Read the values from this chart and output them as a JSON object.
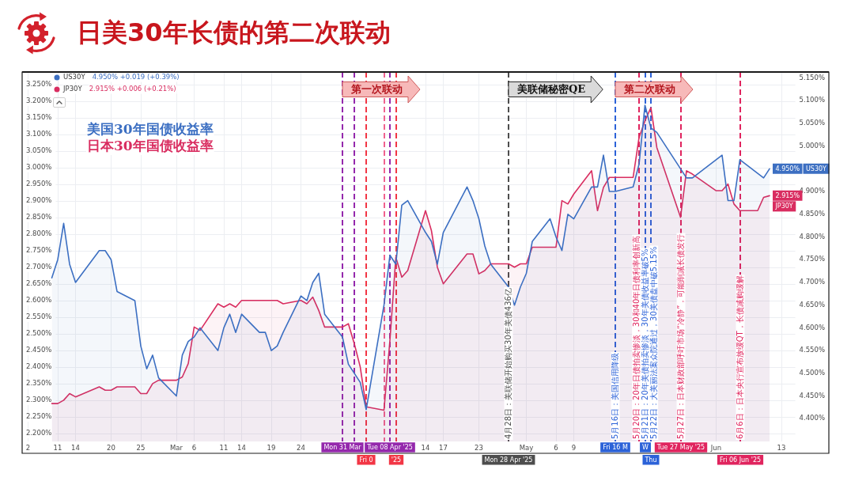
{
  "chart_data": {
    "type": "area",
    "title": "日美30年长债的第二次联动",
    "x": [
      "2025-02-10",
      "2025-02-11",
      "2025-02-12",
      "2025-02-13",
      "2025-02-14",
      "2025-02-18",
      "2025-02-19",
      "2025-02-20",
      "2025-02-21",
      "2025-02-24",
      "2025-02-25",
      "2025-02-26",
      "2025-02-27",
      "2025-02-28",
      "2025-03-03",
      "2025-03-04",
      "2025-03-05",
      "2025-03-06",
      "2025-03-07",
      "2025-03-10",
      "2025-03-11",
      "2025-03-12",
      "2025-03-13",
      "2025-03-14",
      "2025-03-17",
      "2025-03-18",
      "2025-03-19",
      "2025-03-20",
      "2025-03-21",
      "2025-03-24",
      "2025-03-25",
      "2025-03-26",
      "2025-03-27",
      "2025-03-28",
      "2025-03-31",
      "2025-04-01",
      "2025-04-02",
      "2025-04-03",
      "2025-04-04",
      "2025-04-07",
      "2025-04-08",
      "2025-04-09",
      "2025-04-10",
      "2025-04-11",
      "2025-04-14",
      "2025-04-15",
      "2025-04-16",
      "2025-04-17",
      "2025-04-21",
      "2025-04-22",
      "2025-04-23",
      "2025-04-24",
      "2025-04-25",
      "2025-04-28",
      "2025-04-29",
      "2025-04-30",
      "2025-05-01",
      "2025-05-02",
      "2025-05-05",
      "2025-05-06",
      "2025-05-07",
      "2025-05-08",
      "2025-05-09",
      "2025-05-12",
      "2025-05-13",
      "2025-05-14",
      "2025-05-15",
      "2025-05-16",
      "2025-05-19",
      "2025-05-20",
      "2025-05-21",
      "2025-05-22",
      "2025-05-23",
      "2025-05-27",
      "2025-05-28",
      "2025-05-29",
      "2025-06-02",
      "2025-06-03",
      "2025-06-04",
      "2025-06-05",
      "2025-06-06",
      "2025-06-09",
      "2025-06-10",
      "2025-06-11"
    ],
    "series": [
      {
        "name": "US30Y",
        "color": "#3c6fc2",
        "axis": "y2",
        "values": [
          4.71,
          4.75,
          4.83,
          4.74,
          4.7,
          4.77,
          4.77,
          4.75,
          4.68,
          4.66,
          4.56,
          4.51,
          4.54,
          4.49,
          4.45,
          4.54,
          4.57,
          4.58,
          4.6,
          4.55,
          4.6,
          4.63,
          4.59,
          4.63,
          4.59,
          4.59,
          4.55,
          4.56,
          4.59,
          4.67,
          4.66,
          4.7,
          4.72,
          4.63,
          4.58,
          4.52,
          4.5,
          4.48,
          4.42,
          4.65,
          4.76,
          4.74,
          4.87,
          4.88,
          4.81,
          4.79,
          4.74,
          4.81,
          4.91,
          4.88,
          4.84,
          4.78,
          4.74,
          4.69,
          4.65,
          4.69,
          4.72,
          4.79,
          4.84,
          4.8,
          4.77,
          4.85,
          4.84,
          4.91,
          4.91,
          4.98,
          4.9,
          4.9,
          4.91,
          4.96,
          5.09,
          5.04,
          5.03,
          4.95,
          4.93,
          4.93,
          4.97,
          4.98,
          4.88,
          4.88,
          4.97,
          4.94,
          4.93,
          4.95
        ],
        "value_labels": [
          null,
          null,
          null,
          null,
          null,
          null,
          null,
          null,
          null,
          null,
          null,
          null,
          null,
          null,
          null,
          null,
          null,
          null,
          null,
          null,
          null,
          null,
          null,
          null,
          null,
          null,
          null,
          null,
          null,
          null,
          null,
          null,
          null,
          null,
          null,
          null,
          null,
          null,
          null,
          null,
          null,
          null,
          null,
          null,
          null,
          null,
          null,
          null,
          null,
          null,
          null,
          null,
          null,
          null,
          null,
          null,
          null,
          null,
          null,
          null,
          null,
          null,
          null,
          null,
          null,
          null,
          null,
          null,
          null,
          null,
          null,
          null,
          null,
          null,
          null,
          null,
          null,
          null,
          null,
          null,
          null,
          null,
          null,
          "4.950%"
        ]
      },
      {
        "name": "JP30Y",
        "color": "#d92d60",
        "values": [
          2.29,
          2.29,
          2.3,
          2.32,
          2.31,
          2.34,
          2.33,
          2.33,
          2.34,
          2.34,
          2.32,
          2.32,
          2.35,
          2.36,
          2.36,
          2.37,
          2.41,
          2.52,
          2.51,
          2.59,
          2.58,
          2.59,
          2.58,
          2.6,
          2.6,
          2.6,
          2.6,
          2.6,
          2.59,
          2.6,
          2.59,
          2.61,
          2.57,
          2.52,
          2.52,
          2.53,
          2.47,
          2.4,
          2.28,
          2.27,
          2.48,
          2.73,
          2.67,
          2.69,
          2.87,
          2.81,
          2.7,
          2.65,
          2.74,
          2.74,
          2.68,
          2.69,
          2.71,
          2.71,
          2.7,
          2.71,
          2.71,
          2.76,
          2.76,
          2.76,
          2.9,
          2.89,
          2.92,
          2.99,
          2.87,
          2.94,
          2.97,
          2.97,
          2.97,
          3.09,
          3.14,
          3.18,
          3.06,
          2.85,
          2.99,
          2.98,
          2.93,
          2.93,
          2.95,
          2.89,
          2.87,
          2.87,
          2.91,
          2.915
        ],
        "value_labels": [
          null,
          null,
          null,
          null,
          null,
          null,
          null,
          null,
          null,
          null,
          null,
          null,
          null,
          null,
          null,
          null,
          null,
          null,
          null,
          null,
          null,
          null,
          null,
          null,
          null,
          null,
          null,
          null,
          null,
          null,
          null,
          null,
          null,
          null,
          null,
          null,
          null,
          null,
          null,
          null,
          null,
          null,
          null,
          null,
          null,
          null,
          null,
          null,
          null,
          null,
          null,
          null,
          null,
          null,
          null,
          null,
          null,
          null,
          null,
          null,
          null,
          null,
          null,
          null,
          null,
          null,
          null,
          null,
          null,
          null,
          null,
          null,
          null,
          null,
          null,
          null,
          null,
          null,
          null,
          null,
          null,
          null,
          null,
          "2.915%"
        ]
      }
    ],
    "xlim": [
      "2025-02-05",
      "2025-06-21"
    ],
    "xticks": [
      {
        "value": "2025-02-06",
        "label": "2"
      },
      {
        "value": "2025-02-11",
        "label": "11"
      },
      {
        "value": "2025-02-14",
        "label": "14"
      },
      {
        "value": "2025-02-20",
        "label": "20"
      },
      {
        "value": "2025-02-25",
        "label": "25"
      },
      {
        "value": "2025-03-03",
        "label": "Mar"
      },
      {
        "value": "2025-03-06",
        "label": "6"
      },
      {
        "value": "2025-03-11",
        "label": "11"
      },
      {
        "value": "2025-03-14",
        "label": "14"
      },
      {
        "value": "2025-03-19",
        "label": "19"
      },
      {
        "value": "2025-03-24",
        "label": "24"
      },
      {
        "value": "2025-04-14",
        "label": "14"
      },
      {
        "value": "2025-04-17",
        "label": "17"
      },
      {
        "value": "2025-04-23",
        "label": "23"
      },
      {
        "value": "2025-05-01",
        "label": "May"
      },
      {
        "value": "2025-05-06",
        "label": "6"
      },
      {
        "value": "2025-05-09",
        "label": "9"
      },
      {
        "value": "2025-06-02",
        "label": "Jun"
      },
      {
        "value": "2025-06-13",
        "label": "13"
      }
    ],
    "ylim": [
      2.176,
      3.287
    ],
    "yticks": [
      {
        "value": 2.2,
        "label": "2.200%"
      },
      {
        "value": 2.25,
        "label": "2.250%"
      },
      {
        "value": 2.3,
        "label": "2.300%"
      },
      {
        "value": 2.35,
        "label": "2.350%"
      },
      {
        "value": 2.4,
        "label": "2.400%"
      },
      {
        "value": 2.45,
        "label": "2.450%"
      },
      {
        "value": 2.5,
        "label": "2.500%"
      },
      {
        "value": 2.55,
        "label": "2.550%"
      },
      {
        "value": 2.6,
        "label": "2.600%"
      },
      {
        "value": 2.65,
        "label": "2.650%"
      },
      {
        "value": 2.7,
        "label": "2.700%"
      },
      {
        "value": 2.75,
        "label": "2.750%"
      },
      {
        "value": 2.8,
        "label": "2.800%"
      },
      {
        "value": 2.85,
        "label": "2.850%"
      },
      {
        "value": 2.9,
        "label": "2.900%"
      },
      {
        "value": 2.95,
        "label": "2.950%"
      },
      {
        "value": 3.0,
        "label": "3.000%"
      },
      {
        "value": 3.05,
        "label": "3.050%"
      },
      {
        "value": 3.1,
        "label": "3.100%"
      },
      {
        "value": 3.15,
        "label": "3.150%"
      },
      {
        "value": 3.2,
        "label": "3.200%"
      },
      {
        "value": 3.25,
        "label": "3.250%"
      }
    ],
    "y2lim": [
      4.35,
      5.163
    ],
    "y2ticks": [
      {
        "value": 4.4,
        "label": "4.400%"
      },
      {
        "value": 4.45,
        "label": "4.450%"
      },
      {
        "value": 4.5,
        "label": "4.500%"
      },
      {
        "value": 4.55,
        "label": "4.550%"
      },
      {
        "value": 4.6,
        "label": "4.600%"
      },
      {
        "value": 4.65,
        "label": "4.650%"
      },
      {
        "value": 4.7,
        "label": "4.700%"
      },
      {
        "value": 4.75,
        "label": "4.750%"
      },
      {
        "value": 4.8,
        "label": "4.800%"
      },
      {
        "value": 4.85,
        "label": "4.850%"
      },
      {
        "value": 4.9,
        "label": "4.900%"
      },
      {
        "value": 4.95,
        "label": null
      },
      {
        "value": 5.0,
        "label": "5.000%"
      },
      {
        "value": 5.05,
        "label": "5.050%"
      },
      {
        "value": 5.1,
        "label": "5.100%"
      },
      {
        "value": 5.15,
        "label": "5.150%"
      }
    ],
    "grid": true,
    "legend": "top left",
    "marker": "none",
    "line_style": "solid",
    "ref_lines": [
      {
        "axis": "x",
        "value": "2025-03-31",
        "label": "Mon 31 Mar",
        "color": "#9428ac",
        "line_style": "dashed"
      },
      {
        "axis": "x",
        "value": "2025-04-02",
        "color": "#9428ac",
        "line_style": "dashed"
      },
      {
        "axis": "x",
        "value": "2025-04-04",
        "label": "Fri 0",
        "color": "#f23645",
        "line_style": "dashed"
      },
      {
        "axis": "x",
        "value": "2025-04-07",
        "color": "#f0628f",
        "line_style": "dashed"
      },
      {
        "axis": "x",
        "value": "2025-04-08",
        "label": "Tue 08 Apr '25",
        "color": "#9428ac",
        "line_style": "dashed"
      },
      {
        "axis": "x",
        "value": "2025-04-09",
        "label": "'25",
        "color": "#f23645",
        "line_style": "dashed"
      },
      {
        "axis": "x",
        "value": "2025-04-28",
        "label": "Mon 28 Apr '25",
        "color": "#4d4d4d",
        "line_style": "dashed"
      },
      {
        "axis": "x",
        "value": "2025-05-16",
        "label": "Fri 16 M",
        "color": "#2c62d8",
        "line_style": "dashed"
      },
      {
        "axis": "x",
        "value": "2025-05-20",
        "color": "#e0245e",
        "line_style": "dashed"
      },
      {
        "axis": "x",
        "value": "2025-05-21",
        "label": "W",
        "color": "#2c62d8",
        "line_style": "dashed"
      },
      {
        "axis": "x",
        "value": "2025-05-22",
        "label": "Thu",
        "color": "#2c62d8",
        "line_style": "dashed"
      },
      {
        "axis": "x",
        "value": "2025-05-27",
        "label": "Tue 27 May '25",
        "color": "#e0245e",
        "line_style": "dashed"
      },
      {
        "axis": "x",
        "value": "2025-06-06",
        "label": "Fri 06 Jun '25",
        "color": "#e0245e",
        "line_style": "dashed"
      }
    ],
    "annotations": [
      "4.950% +0.019 (+0.39%)",
      "2.915% +0.006 (+0.21%)",
      "美国30年国债收益率",
      "日本30年国债收益率",
      "第一次联动",
      "美联储秘密QE",
      "第二次联动",
      {
        "text": "4月28日：美联储开始购买30年美债436亿",
        "x": "2025-04-28"
      },
      {
        "text": "5月16日：美国信用降级",
        "x": "2025-05-16"
      },
      {
        "text": "5月20日：20年日债拍卖惨淡，30和40年日债利率创新高",
        "x": "2025-05-20"
      },
      {
        "text": "5月21日：20年美债拍卖惨淡，30年美债收益率破5%",
        "x": "2025-05-21"
      },
      {
        "text": "5月22日：大美丽法案众院通过，30美债盘中破5.15%",
        "x": "2025-05-22"
      },
      {
        "text": "5月27日：日本财政部呼吁市场“冷静”，可能削减长债发行",
        "x": "2025-05-27"
      },
      {
        "text": "6月6日：日本央行宣布放缓QT，长债减购缓解",
        "x": "2025-06-06"
      }
    ]
  }
}
